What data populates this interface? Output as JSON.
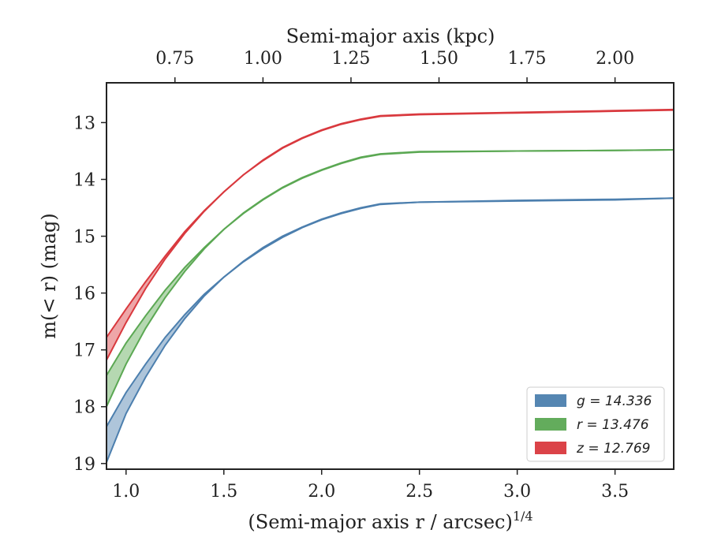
{
  "chart_data": {
    "type": "line",
    "xlabel": "(Semi-major axis r / arcsec)",
    "xlabel_superscript": "1/4",
    "ylabel": "m(< r) (mag)",
    "top_xlabel": "Semi-major axis (kpc)",
    "xlim": [
      0.9,
      3.8
    ],
    "ylim": [
      19.1,
      12.3
    ],
    "y_inverted": true,
    "grid": false,
    "legend_position": "lower-right",
    "x_ticks": [
      "1.0",
      "1.5",
      "2.0",
      "2.5",
      "3.0",
      "3.5"
    ],
    "y_ticks": [
      "13",
      "14",
      "15",
      "16",
      "17",
      "18",
      "19"
    ],
    "top_x_ticks": [
      "0.75",
      "1.00",
      "1.25",
      "1.50",
      "1.75",
      "2.00"
    ],
    "top_x_tick_positions": [
      1.25,
      1.7,
      2.15,
      2.6,
      3.05,
      3.5
    ],
    "series": [
      {
        "name": "g = 14.336",
        "color": "#4c7fae",
        "x": [
          0.9,
          1.0,
          1.1,
          1.2,
          1.3,
          1.4,
          1.5,
          1.6,
          1.7,
          1.8,
          1.9,
          2.0,
          2.1,
          2.2,
          2.3,
          2.5,
          3.0,
          3.5,
          3.8
        ],
        "y_upper": [
          18.35,
          17.75,
          17.25,
          16.78,
          16.38,
          16.02,
          15.72,
          15.45,
          15.22,
          15.02,
          14.85,
          14.71,
          14.6,
          14.51,
          14.44,
          14.4,
          14.38,
          14.36,
          14.33
        ],
        "y_lower": [
          18.98,
          18.12,
          17.48,
          16.92,
          16.45,
          16.05,
          15.72,
          15.44,
          15.2,
          15.0,
          14.84,
          14.7,
          14.59,
          14.5,
          14.43,
          14.4,
          14.37,
          14.35,
          14.33
        ]
      },
      {
        "name": "r = 13.476",
        "color": "#5ba853",
        "x": [
          0.9,
          1.0,
          1.1,
          1.2,
          1.3,
          1.4,
          1.5,
          1.6,
          1.7,
          1.8,
          1.9,
          2.0,
          2.1,
          2.2,
          2.3,
          2.5,
          3.0,
          3.5,
          3.8
        ],
        "y_upper": [
          17.45,
          16.88,
          16.4,
          15.95,
          15.55,
          15.2,
          14.88,
          14.6,
          14.36,
          14.15,
          13.98,
          13.84,
          13.72,
          13.62,
          13.56,
          13.52,
          13.5,
          13.49,
          13.48
        ],
        "y_lower": [
          18.0,
          17.25,
          16.62,
          16.08,
          15.62,
          15.22,
          14.88,
          14.59,
          14.35,
          14.14,
          13.97,
          13.83,
          13.71,
          13.61,
          13.55,
          13.51,
          13.5,
          13.49,
          13.48
        ]
      },
      {
        "name": "z = 12.769",
        "color": "#d9393e",
        "x": [
          0.9,
          1.0,
          1.1,
          1.2,
          1.3,
          1.4,
          1.5,
          1.6,
          1.7,
          1.8,
          1.9,
          2.0,
          2.1,
          2.2,
          2.3,
          2.5,
          3.0,
          3.5,
          3.8
        ],
        "y_upper": [
          16.78,
          16.28,
          15.8,
          15.35,
          14.92,
          14.55,
          14.22,
          13.92,
          13.67,
          13.45,
          13.28,
          13.14,
          13.03,
          12.95,
          12.89,
          12.86,
          12.83,
          12.8,
          12.78
        ],
        "y_lower": [
          17.18,
          16.52,
          15.92,
          15.4,
          14.95,
          14.56,
          14.22,
          13.92,
          13.66,
          13.44,
          13.27,
          13.13,
          13.02,
          12.94,
          12.88,
          12.85,
          12.82,
          12.79,
          12.77
        ]
      }
    ]
  }
}
